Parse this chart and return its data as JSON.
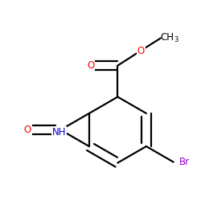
{
  "bg_color": "#ffffff",
  "atom_colors": {
    "O": "#ff0000",
    "N": "#0000cd",
    "Br": "#9400d3",
    "C": "#000000",
    "H": "#000000"
  },
  "bond_color": "#000000",
  "bond_width": 1.6,
  "dbo": 0.018,
  "figsize": [
    2.5,
    2.5
  ],
  "dpi": 100
}
